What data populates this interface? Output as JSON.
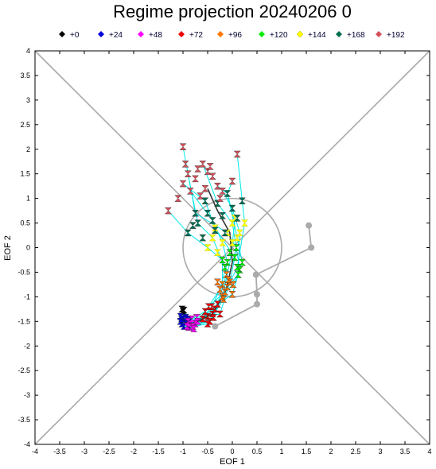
{
  "chart_data": {
    "type": "scatter",
    "title": "Regime projection 20240206 0",
    "xlabel": "EOF 1",
    "ylabel": "EOF 2",
    "xlim": [
      -4,
      4
    ],
    "ylim": [
      -4,
      4
    ],
    "x_ticks": [
      "-4",
      "-3.5",
      "-3",
      "-2.5",
      "-2",
      "-1.5",
      "-1",
      "-0.5",
      "0",
      "0.5",
      "1",
      "1.5",
      "2",
      "2.5",
      "3",
      "3.5",
      "4"
    ],
    "y_ticks": [
      "4",
      "3.5",
      "3",
      "2.5",
      "2",
      "1.5",
      "1",
      "0.5",
      "0",
      "-0.5",
      "-1",
      "-1.5",
      "-2",
      "-2.5",
      "-3",
      "-3.5",
      "-4"
    ],
    "reference_lines": {
      "diagonals": true,
      "unit_circle_radius": 1,
      "color": "#aaaaaa"
    },
    "legend": {
      "placement": "top",
      "entries": [
        {
          "label": "+0",
          "color": "#000000"
        },
        {
          "label": "+24",
          "color": "#0000dd"
        },
        {
          "label": "+48",
          "color": "#ff00ff"
        },
        {
          "label": "+72",
          "color": "#ee0000"
        },
        {
          "label": "+96",
          "color": "#ff7700"
        },
        {
          "label": "+120",
          "color": "#00ee00"
        },
        {
          "label": "+144",
          "color": "#ffff00"
        },
        {
          "label": "+168",
          "color": "#006e50"
        },
        {
          "label": "+192",
          "color": "#d4505a"
        }
      ]
    },
    "series": [
      {
        "label": "+0",
        "color": "#000000",
        "points": [
          [
            -1.02,
            -1.25
          ],
          [
            -0.98,
            -1.27
          ],
          [
            -1.0,
            -1.3
          ]
        ]
      },
      {
        "label": "+24",
        "color": "#0000dd",
        "points": [
          [
            -1.05,
            -1.4
          ],
          [
            -1.0,
            -1.45
          ],
          [
            -0.95,
            -1.5
          ],
          [
            -1.02,
            -1.55
          ],
          [
            -0.92,
            -1.45
          ],
          [
            -0.88,
            -1.52
          ],
          [
            -1.05,
            -1.5
          ],
          [
            -0.98,
            -1.6
          ],
          [
            -0.9,
            -1.58
          ],
          [
            -0.85,
            -1.45
          ],
          [
            -1.03,
            -1.45
          ],
          [
            -0.95,
            -1.42
          ]
        ]
      },
      {
        "label": "+48",
        "color": "#ff00ff",
        "points": [
          [
            -0.9,
            -1.5
          ],
          [
            -0.85,
            -1.55
          ],
          [
            -0.8,
            -1.6
          ],
          [
            -0.88,
            -1.62
          ],
          [
            -0.75,
            -1.55
          ],
          [
            -0.82,
            -1.45
          ],
          [
            -0.7,
            -1.5
          ],
          [
            -0.78,
            -1.65
          ],
          [
            -0.92,
            -1.6
          ],
          [
            -0.72,
            -1.42
          ]
        ]
      },
      {
        "label": "+72",
        "color": "#ee0000",
        "points": [
          [
            -0.6,
            -1.45
          ],
          [
            -0.5,
            -1.4
          ],
          [
            -0.4,
            -1.35
          ],
          [
            -0.45,
            -1.5
          ],
          [
            -0.35,
            -1.25
          ],
          [
            -0.3,
            -1.15
          ],
          [
            -0.55,
            -1.3
          ],
          [
            -0.42,
            -1.2
          ],
          [
            -0.25,
            -1.35
          ],
          [
            -0.5,
            -1.55
          ],
          [
            -0.38,
            -1.42
          ],
          [
            -0.48,
            -1.2
          ]
        ]
      },
      {
        "label": "+96",
        "color": "#ff7700",
        "points": [
          [
            -0.2,
            -1.0
          ],
          [
            -0.15,
            -0.9
          ],
          [
            -0.1,
            -0.8
          ],
          [
            -0.05,
            -0.7
          ],
          [
            -0.2,
            -0.75
          ],
          [
            -0.12,
            -0.55
          ],
          [
            0.0,
            -0.95
          ],
          [
            -0.18,
            -1.05
          ],
          [
            -0.25,
            -0.85
          ],
          [
            -0.08,
            -0.65
          ],
          [
            0.02,
            -0.75
          ],
          [
            -0.3,
            -0.7
          ]
        ]
      },
      {
        "label": "+120",
        "color": "#00ee00",
        "points": [
          [
            -0.1,
            -0.3
          ],
          [
            0.05,
            -0.2
          ],
          [
            0.1,
            -0.4
          ],
          [
            -0.05,
            -0.1
          ],
          [
            0.15,
            -0.45
          ],
          [
            0.12,
            -0.55
          ],
          [
            -0.15,
            -0.4
          ],
          [
            0.08,
            0.0
          ],
          [
            0.2,
            -0.3
          ],
          [
            -0.2,
            -0.25
          ]
        ]
      },
      {
        "label": "+144",
        "color": "#ffff00",
        "points": [
          [
            -0.5,
            0.0
          ],
          [
            -0.4,
            0.2
          ],
          [
            -0.3,
            -0.1
          ],
          [
            0.0,
            0.5
          ],
          [
            0.1,
            0.2
          ],
          [
            0.25,
            0.5
          ],
          [
            -0.1,
            0.3
          ],
          [
            0.05,
            0.6
          ],
          [
            -0.2,
            0.1
          ],
          [
            0.15,
            0.3
          ],
          [
            -0.35,
            0.4
          ],
          [
            0.0,
            0.1
          ]
        ]
      },
      {
        "label": "+168",
        "color": "#006e50",
        "points": [
          [
            -0.9,
            0.3
          ],
          [
            -0.7,
            0.5
          ],
          [
            -0.5,
            0.7
          ],
          [
            -0.3,
            0.9
          ],
          [
            -0.1,
            1.1
          ],
          [
            0.2,
            0.95
          ],
          [
            0.0,
            0.8
          ],
          [
            -0.6,
            0.2
          ],
          [
            -0.4,
            0.55
          ],
          [
            -0.2,
            0.65
          ],
          [
            -0.8,
            0.45
          ],
          [
            -0.35,
            0.35
          ],
          [
            -0.15,
            0.3
          ],
          [
            0.1,
            0.6
          ],
          [
            -0.55,
            0.95
          ],
          [
            -0.75,
            0.7
          ]
        ]
      },
      {
        "label": "+192",
        "color": "#d4505a",
        "points": [
          [
            -1.3,
            0.75
          ],
          [
            -1.1,
            1.0
          ],
          [
            -1.0,
            1.3
          ],
          [
            -0.9,
            1.5
          ],
          [
            -0.7,
            1.6
          ],
          [
            -0.6,
            1.7
          ],
          [
            -0.5,
            1.55
          ],
          [
            -0.4,
            1.45
          ],
          [
            -0.3,
            1.25
          ],
          [
            -0.2,
            1.15
          ],
          [
            0.0,
            1.35
          ],
          [
            0.1,
            1.9
          ],
          [
            -1.0,
            2.05
          ],
          [
            -0.95,
            1.7
          ],
          [
            -0.85,
            1.15
          ],
          [
            -0.75,
            1.4
          ],
          [
            -0.55,
            1.2
          ],
          [
            -0.45,
            1.65
          ],
          [
            -0.65,
            1.05
          ],
          [
            -0.25,
            1.0
          ]
        ]
      }
    ],
    "lines": {
      "color": "#00e8e8",
      "paths": [
        [
          [
            -1.0,
            -1.28
          ],
          [
            -0.95,
            -1.45
          ],
          [
            -0.8,
            -1.55
          ],
          [
            -0.5,
            -1.4
          ],
          [
            -0.2,
            -1.0
          ],
          [
            -0.05,
            -0.3
          ],
          [
            0.05,
            0.5
          ],
          [
            -0.1,
            1.1
          ],
          [
            -0.3,
            1.25
          ]
        ],
        [
          [
            -1.0,
            -1.28
          ],
          [
            -1.0,
            -1.5
          ],
          [
            -0.85,
            -1.6
          ],
          [
            -0.45,
            -1.5
          ],
          [
            -0.15,
            -0.9
          ],
          [
            0.1,
            -0.4
          ],
          [
            0.25,
            0.5
          ],
          [
            0.2,
            0.95
          ],
          [
            0.1,
            1.9
          ]
        ],
        [
          [
            -1.0,
            -1.28
          ],
          [
            -0.92,
            -1.45
          ],
          [
            -0.75,
            -1.55
          ],
          [
            -0.35,
            -1.25
          ],
          [
            -0.1,
            -0.8
          ],
          [
            0.12,
            -0.55
          ],
          [
            0.15,
            0.3
          ],
          [
            0.0,
            0.8
          ],
          [
            -0.2,
            1.15
          ]
        ],
        [
          [
            -1.0,
            -1.28
          ],
          [
            -0.9,
            -1.58
          ],
          [
            -0.7,
            -1.5
          ],
          [
            -0.3,
            -1.15
          ],
          [
            0.0,
            -0.95
          ],
          [
            0.15,
            -0.45
          ],
          [
            0.0,
            0.5
          ],
          [
            -0.3,
            0.9
          ],
          [
            -0.6,
            1.7
          ]
        ],
        [
          [
            -1.0,
            -1.28
          ],
          [
            -1.05,
            -1.4
          ],
          [
            -0.82,
            -1.45
          ],
          [
            -0.55,
            -1.3
          ],
          [
            -0.25,
            -0.85
          ],
          [
            -0.1,
            -0.3
          ],
          [
            -0.2,
            0.1
          ],
          [
            -0.4,
            0.55
          ],
          [
            -0.85,
            1.15
          ]
        ],
        [
          [
            -1.0,
            -1.28
          ],
          [
            -0.98,
            -1.6
          ],
          [
            -0.78,
            -1.65
          ],
          [
            -0.42,
            -1.2
          ],
          [
            -0.2,
            -0.75
          ],
          [
            -0.2,
            -0.25
          ],
          [
            -0.5,
            0.0
          ],
          [
            -0.9,
            0.3
          ],
          [
            -1.3,
            0.75
          ]
        ],
        [
          [
            -1.0,
            -1.28
          ],
          [
            -0.88,
            -1.52
          ],
          [
            -0.72,
            -1.42
          ],
          [
            -0.25,
            -1.35
          ],
          [
            -0.05,
            -0.7
          ],
          [
            0.05,
            -0.2
          ],
          [
            -0.35,
            0.4
          ],
          [
            -0.55,
            0.95
          ],
          [
            -1.0,
            1.3
          ]
        ],
        [
          [
            -1.0,
            -1.28
          ],
          [
            -1.02,
            -1.55
          ],
          [
            -0.88,
            -1.62
          ],
          [
            -0.5,
            -1.55
          ],
          [
            -0.18,
            -1.05
          ],
          [
            0.08,
            0.0
          ],
          [
            -0.1,
            0.3
          ],
          [
            -0.75,
            0.7
          ],
          [
            -1.0,
            2.05
          ]
        ],
        [
          [
            -1.0,
            -1.28
          ],
          [
            -0.95,
            -1.42
          ],
          [
            -0.8,
            -1.6
          ],
          [
            -0.38,
            -1.42
          ],
          [
            -0.12,
            -0.55
          ],
          [
            -0.15,
            -0.4
          ],
          [
            -0.4,
            0.2
          ],
          [
            -0.7,
            0.5
          ],
          [
            -0.9,
            1.5
          ]
        ],
        [
          [
            -1.0,
            -1.28
          ],
          [
            -0.85,
            -1.45
          ],
          [
            -0.75,
            -1.55
          ],
          [
            -0.48,
            -1.2
          ],
          [
            0.02,
            -0.75
          ],
          [
            0.2,
            -0.3
          ],
          [
            0.1,
            0.2
          ],
          [
            -0.1,
            1.1
          ],
          [
            0.0,
            1.35
          ]
        ]
      ],
      "mean_color": "#333333",
      "mean_path": [
        [
          -1.0,
          -1.28
        ],
        [
          -0.9,
          -1.5
        ],
        [
          -0.8,
          -1.55
        ],
        [
          -0.4,
          -1.35
        ],
        [
          -0.12,
          -0.85
        ],
        [
          0.0,
          -0.3
        ],
        [
          -0.05,
          0.3
        ],
        [
          -0.3,
          0.75
        ],
        [
          -0.5,
          1.2
        ]
      ]
    },
    "analysis_track": {
      "color": "#aaaaaa",
      "points": [
        [
          -0.35,
          -1.6
        ],
        [
          0.5,
          -1.15
        ],
        [
          0.5,
          -0.95
        ],
        [
          0.48,
          -0.55
        ],
        [
          1.6,
          0.0
        ],
        [
          1.55,
          0.45
        ]
      ]
    }
  }
}
